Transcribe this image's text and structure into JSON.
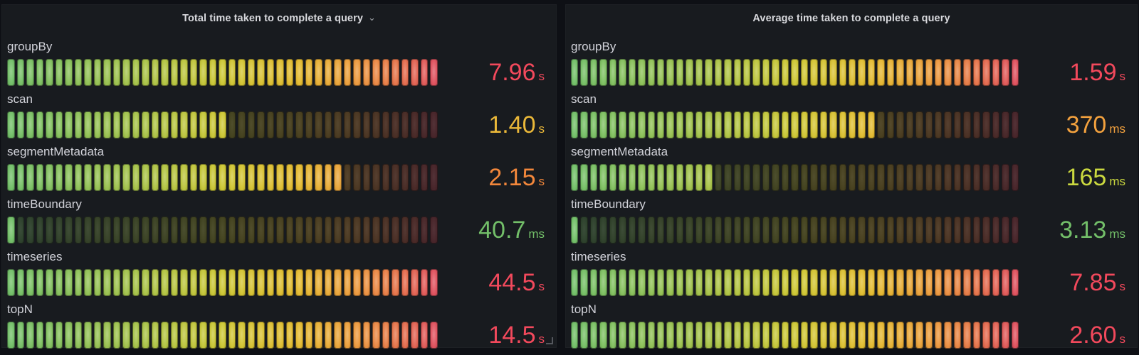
{
  "colors": {
    "page_bg": "#0e1015",
    "panel_bg": "#181b1f",
    "title_text": "#d8d9dd",
    "label_text": "#d2d3da",
    "dim_base": "#141619"
  },
  "gradient_stops": [
    [
      "0.00",
      "#73BF69"
    ],
    [
      "0.28",
      "#A3C24C"
    ],
    [
      "0.50",
      "#CDC735"
    ],
    [
      "0.68",
      "#E4BB32"
    ],
    [
      "0.82",
      "#EC9A3F"
    ],
    [
      "0.92",
      "#E4714C"
    ],
    [
      "1.00",
      "#DF535F"
    ]
  ],
  "panels": [
    {
      "title": "Total time taken to complete a query",
      "menu_chevron": "⌄",
      "rows": [
        {
          "label": "groupBy",
          "value": "7.96",
          "unit": "s",
          "value_color": "#F2495C",
          "fill": 1.0
        },
        {
          "label": "scan",
          "value": "1.40",
          "unit": "s",
          "value_color": "#EAB839",
          "fill": 0.52
        },
        {
          "label": "segmentMetadata",
          "value": "2.15",
          "unit": "s",
          "value_color": "#F2873B",
          "fill": 0.78
        },
        {
          "label": "timeBoundary",
          "value": "40.7",
          "unit": "ms",
          "value_color": "#73BF69",
          "fill": 0.02
        },
        {
          "label": "timeseries",
          "value": "44.5",
          "unit": "s",
          "value_color": "#F2495C",
          "fill": 1.0
        },
        {
          "label": "topN",
          "value": "14.5",
          "unit": "s",
          "value_color": "#F2495C",
          "fill": 1.0
        }
      ]
    },
    {
      "title": "Average time taken to complete a query",
      "menu_chevron": "",
      "rows": [
        {
          "label": "groupBy",
          "value": "1.59",
          "unit": "s",
          "value_color": "#F2495C",
          "fill": 1.0
        },
        {
          "label": "scan",
          "value": "370",
          "unit": "ms",
          "value_color": "#F2A13E",
          "fill": 0.68
        },
        {
          "label": "segmentMetadata",
          "value": "165",
          "unit": "ms",
          "value_color": "#CBD93F",
          "fill": 0.32
        },
        {
          "label": "timeBoundary",
          "value": "3.13",
          "unit": "ms",
          "value_color": "#73BF69",
          "fill": 0.02
        },
        {
          "label": "timeseries",
          "value": "7.85",
          "unit": "s",
          "value_color": "#F2495C",
          "fill": 1.0
        },
        {
          "label": "topN",
          "value": "2.60",
          "unit": "s",
          "value_color": "#F2495C",
          "fill": 1.0
        }
      ]
    }
  ],
  "chart_data": [
    {
      "type": "bar",
      "style": "retro-lcd-bar-gauge",
      "orientation": "horizontal",
      "title": "Total time taken to complete a query",
      "categories": [
        "groupBy",
        "scan",
        "segmentMetadata",
        "timeBoundary",
        "timeseries",
        "topN"
      ],
      "values_seconds": [
        7.96,
        1.4,
        2.15,
        0.0407,
        44.5,
        14.5
      ],
      "displayed_values": [
        "7.96 s",
        "1.40 s",
        "2.15 s",
        "40.7 ms",
        "44.5 s",
        "14.5 s"
      ],
      "fill_fractions": [
        1.0,
        0.52,
        0.78,
        0.02,
        1.0,
        1.0
      ],
      "color_scale": "green-yellow-red",
      "legend": "none",
      "grid": "off"
    },
    {
      "type": "bar",
      "style": "retro-lcd-bar-gauge",
      "orientation": "horizontal",
      "title": "Average time taken to complete a query",
      "categories": [
        "groupBy",
        "scan",
        "segmentMetadata",
        "timeBoundary",
        "timeseries",
        "topN"
      ],
      "values_seconds": [
        1.59,
        0.37,
        0.165,
        0.00313,
        7.85,
        2.6
      ],
      "displayed_values": [
        "1.59 s",
        "370 ms",
        "165 ms",
        "3.13 ms",
        "7.85 s",
        "2.60 s"
      ],
      "fill_fractions": [
        1.0,
        0.68,
        0.32,
        0.02,
        1.0,
        1.0
      ],
      "color_scale": "green-yellow-red",
      "legend": "none",
      "grid": "off"
    }
  ]
}
